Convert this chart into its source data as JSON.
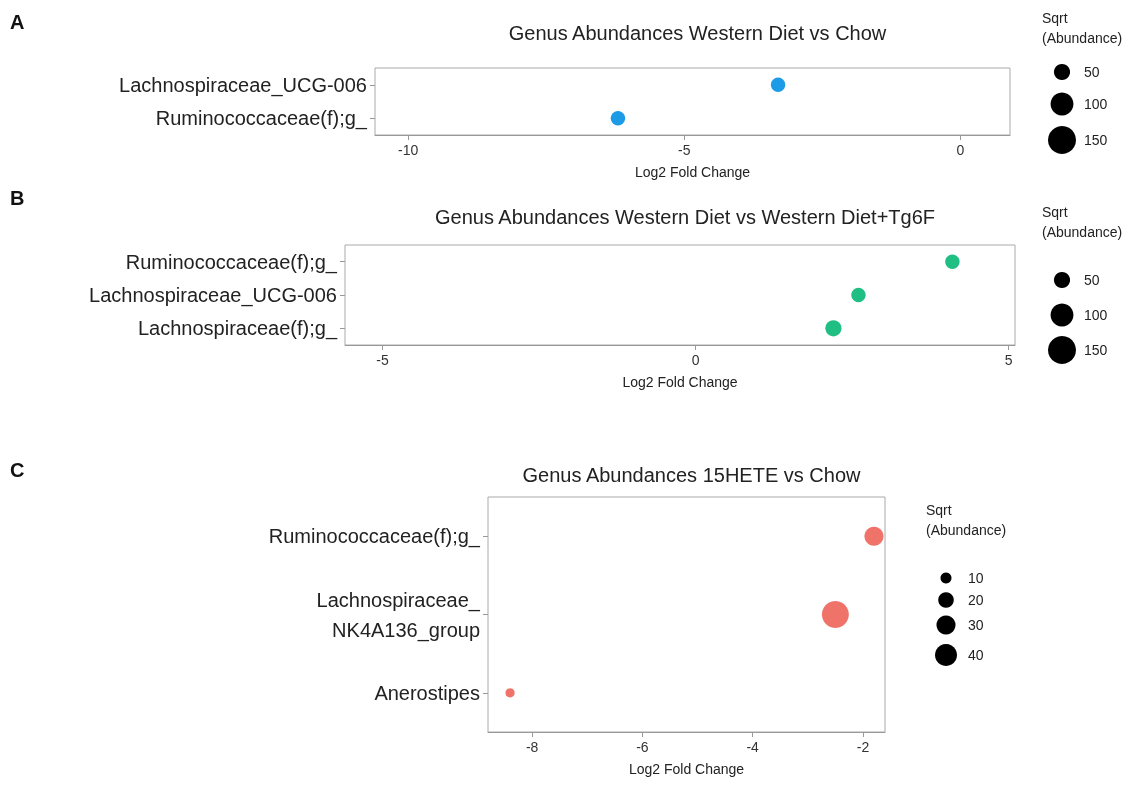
{
  "chart_data": [
    {
      "type": "bubble",
      "title": "Genus Abundances Western Diet vs Chow",
      "xlabel": "Log2 Fold Change",
      "legend_title": "Sqrt (Abundance)",
      "annotations": [
        "A"
      ],
      "orientation": "horizontal",
      "categories": [
        "Lachnospiraceae_UCG-006",
        "Ruminococcaceae(f);g_"
      ],
      "series": [
        {
          "color": "#1e9be6",
          "values": [
            -3.3,
            -6.2
          ],
          "sizes": [
            40,
            40
          ]
        }
      ],
      "xlim": [
        -10.6,
        0.9
      ],
      "xticks": [
        -10,
        -5,
        0
      ],
      "size_legend": [
        50,
        100,
        150
      ],
      "marker": "circle",
      "grid": false
    },
    {
      "type": "bubble",
      "title": "Genus Abundances Western Diet vs Western Diet+Tg6F",
      "xlabel": "Log2 Fold Change",
      "legend_title": "Sqrt (Abundance)",
      "annotations": [
        "B"
      ],
      "orientation": "horizontal",
      "categories": [
        "Ruminococcaceae(f);g_",
        "Lachnospiraceae_UCG-006",
        "Lachnospiraceae(f);g_"
      ],
      "series": [
        {
          "color": "#1fbf84",
          "values": [
            4.1,
            2.6,
            2.2
          ],
          "sizes": [
            40,
            40,
            50
          ]
        }
      ],
      "xlim": [
        -5.6,
        5.1
      ],
      "xticks": [
        -5,
        0,
        5
      ],
      "size_legend": [
        50,
        100,
        150
      ],
      "marker": "circle",
      "grid": false
    },
    {
      "type": "bubble",
      "title": "Genus Abundances 15HETE vs Chow",
      "xlabel": "Log2 Fold Change",
      "legend_title": "Sqrt (Abundance)",
      "annotations": [
        "C"
      ],
      "orientation": "horizontal",
      "categories": [
        "Ruminococcaceae(f);g_",
        "Lachnospiraceae_\nNK4A136_group",
        "Anerostipes"
      ],
      "series": [
        {
          "color": "#f0736a",
          "values": [
            -1.8,
            -2.5,
            -8.4
          ],
          "sizes": [
            30,
            60,
            7
          ]
        }
      ],
      "xlim": [
        -8.8,
        -1.6
      ],
      "xticks": [
        -8,
        -6,
        -4,
        -2
      ],
      "size_legend": [
        10,
        20,
        30,
        40
      ],
      "marker": "circle",
      "grid": false
    }
  ]
}
